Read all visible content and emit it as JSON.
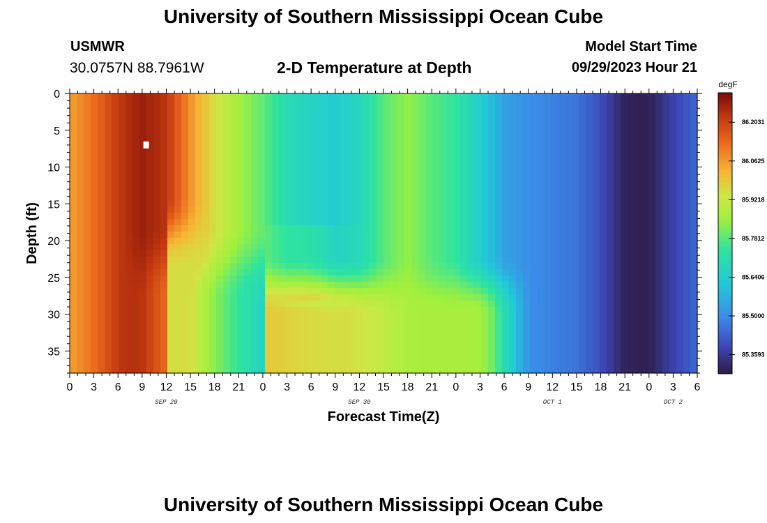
{
  "header": {
    "title": "University of Southern Mississippi Ocean Cube",
    "station": "USMWR",
    "coords": "30.0757N  88.7961W",
    "subtitle": "2-D Temperature at Depth",
    "model_label": "Model Start Time",
    "model_time": "09/29/2023 Hour 21",
    "footer_title": "University of Southern Mississippi Ocean Cube"
  },
  "chart_data": {
    "type": "heatmap",
    "title": "2-D Temperature at Depth",
    "xlabel": "Forecast Time(Z)",
    "ylabel": "Depth (ft)",
    "x_range_hours": [
      0,
      78
    ],
    "ylim": [
      0,
      38
    ],
    "x_tick_labels": [
      "0",
      "3",
      "6",
      "9",
      "12",
      "15",
      "18",
      "21",
      "0",
      "3",
      "6",
      "9",
      "12",
      "15",
      "18",
      "21",
      "0",
      "3",
      "6",
      "9",
      "12",
      "15",
      "18",
      "21",
      "0",
      "3",
      "6"
    ],
    "date_labels": [
      {
        "text": "SEP 29",
        "hour": 12
      },
      {
        "text": "SEP 30",
        "hour": 36
      },
      {
        "text": "OCT 1",
        "hour": 60
      },
      {
        "text": "OCT 2",
        "hour": 75
      }
    ],
    "y_ticks": [
      0,
      5,
      10,
      15,
      20,
      25,
      30,
      35
    ],
    "y_tick_labels": [
      "0",
      "5",
      "10",
      "15",
      "20",
      "25",
      "30",
      "35"
    ],
    "colorbar": {
      "units": "degF",
      "min": 85.29,
      "max": 86.31,
      "labels": [
        "86.2031",
        "86.0625",
        "85.9218",
        "85.7812",
        "85.6406",
        "85.5000",
        "85.3593"
      ],
      "label_values": [
        86.2031,
        86.0625,
        85.9218,
        85.7812,
        85.6406,
        85.5,
        85.3593
      ]
    },
    "marker": {
      "hour": 9.5,
      "depth": 7
    },
    "surface_profile": {
      "hours": [
        0,
        3,
        6,
        9,
        12,
        15,
        18,
        21,
        24,
        27,
        30,
        33,
        36,
        39,
        42,
        45,
        48,
        51,
        54,
        57,
        60,
        63,
        66,
        69,
        72,
        75,
        78
      ],
      "temps": [
        86.05,
        86.12,
        86.22,
        86.27,
        86.23,
        86.07,
        85.95,
        85.86,
        85.79,
        85.7,
        85.66,
        85.63,
        85.68,
        85.78,
        85.84,
        85.78,
        85.74,
        85.64,
        85.54,
        85.5,
        85.48,
        85.46,
        85.4,
        85.31,
        85.3,
        85.38,
        85.44
      ]
    }
  }
}
